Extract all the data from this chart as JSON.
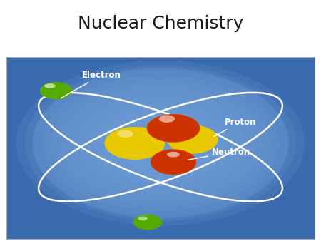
{
  "title": "Nuclear Chemistry",
  "title_fontsize": 18,
  "title_fontweight": "normal",
  "title_color": "#1a1a1a",
  "bg_color": "#ffffff",
  "image_rect_color": "#3a6aaf",
  "image_glow_color": "#8ab0e0",
  "electron_label": "Electron",
  "proton_label": "Proton",
  "neutron_label": "Neutron",
  "label_color": "#ffffff",
  "label_fontsize": 8.5,
  "label_fontweight": "bold",
  "proton_color": "#cc3300",
  "neutron_color": "#e8c800",
  "electron_color": "#55aa00"
}
